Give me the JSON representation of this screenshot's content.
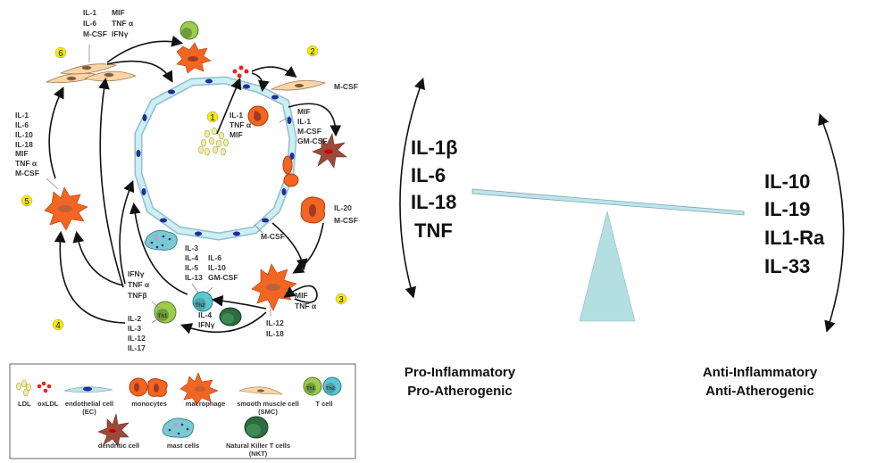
{
  "left_panel": {
    "step_numbers": [
      "1",
      "2",
      "3",
      "4",
      "5",
      "6"
    ],
    "smc_cytokines_col1": [
      "IL-1",
      "IL-6",
      "M-CSF"
    ],
    "smc_cytokines_col2": [
      "MIF",
      "TNF α",
      "IFNγ"
    ],
    "macrophage5_cytokines": [
      "IL-1",
      "IL-6",
      "IL-10",
      "IL-18",
      "MIF",
      "TNF α",
      "M-CSF"
    ],
    "smc2_cytokine": "M-CSF",
    "monocyte_cytokines": [
      "IL-1",
      "TNF α",
      "MIF"
    ],
    "ec_cytokines": [
      "MIF",
      "IL-1",
      "M-CSF",
      "GM-CSF"
    ],
    "macrophage_right_cytokines": [
      "IL-20",
      "M-CSF"
    ],
    "ec_bottom_cytokine": "M-CSF",
    "th2_cytokines_col1": [
      "IL-3",
      "IL-4",
      "IL-5",
      "IL-13"
    ],
    "th2_cytokines_col2": [
      "IL-6",
      "IL-10",
      "GM-CSF"
    ],
    "macrophage3_cytokines": [
      "MIF",
      "TNF α"
    ],
    "macrophage3_bottom_cytokines": [
      "IL-12",
      "IL-18"
    ],
    "th1_cytokines_top": [
      "IFNγ",
      "TNF α",
      "TNFβ"
    ],
    "th1_cytokines_bottom": [
      "IL-2",
      "IL-3",
      "IL-12",
      "IL-17"
    ],
    "nkt_cytokines": [
      "IL-4",
      "IFNγ"
    ],
    "th1_label": "Th1",
    "th2_label": "Th2"
  },
  "legend": {
    "ldl": "LDL",
    "oxldl": "oxLDL",
    "endothelial": "endothelial cell",
    "endothelial_abbr": "(EC)",
    "monocytes": "monocytes",
    "macrophage": "macrophage",
    "smc": "smooth muscle cell",
    "smc_abbr": "(SMC)",
    "tcell": "T cell",
    "dendritic": "dendritic cell",
    "mast": "mast cells",
    "nkt": "Natural Killer T cells",
    "nkt_abbr": "(NKT)"
  },
  "balance": {
    "pro_cytokines": [
      "IL-1β",
      "IL-6",
      "IL-18",
      "TNF"
    ],
    "anti_cytokines": [
      "IL-10",
      "IL-19",
      "IL1-Ra",
      "IL-33"
    ],
    "pro_caption": [
      "Pro-Inflammatory",
      "Pro-Atherogenic"
    ],
    "anti_caption": [
      "Anti-Inflammatory",
      "Anti-Atherogenic"
    ]
  },
  "colors": {
    "macrophage": "#f26522",
    "endothelial": "#bfe3ea",
    "nucleus": "#1f2f9a",
    "smc": "#fbd5a5",
    "fulcrum": "#b4dfe0",
    "step_marker": "#f5ea00",
    "th1": "#9ccc4e",
    "th2": "#5ec6cf",
    "nkt": "#2e6b3f",
    "dendritic": "#9c4a3c"
  }
}
